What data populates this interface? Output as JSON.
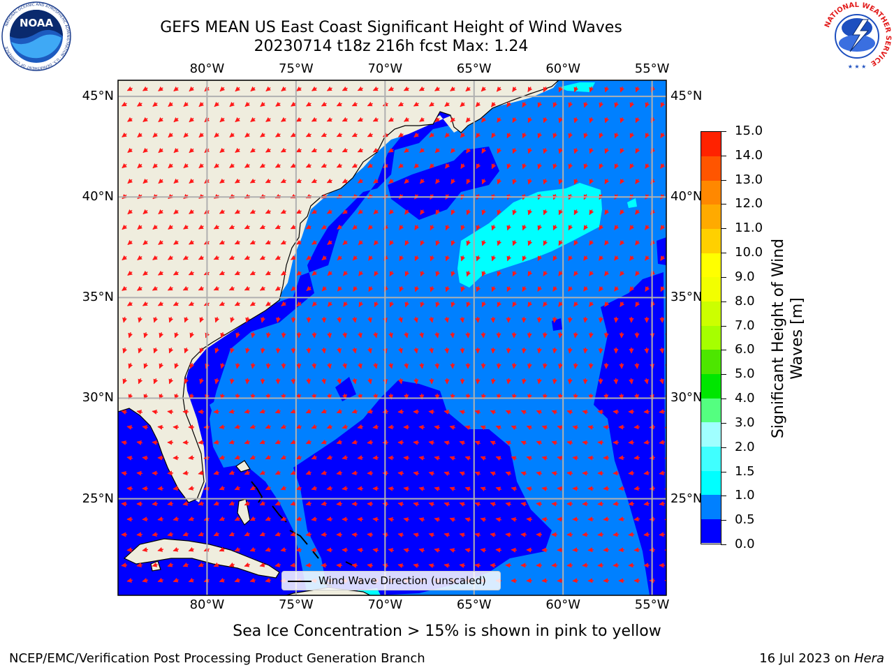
{
  "title": {
    "line1": "GEFS MEAN US East Coast Significant Height of Wind Waves",
    "line2": "20230714 t18z 216h fcst   Max: 1.24"
  },
  "map": {
    "lon_min": -85,
    "lon_max": -54.2,
    "lat_min": 20.2,
    "lat_max": 45.8,
    "longitude_ticks": [
      "80°W",
      "75°W",
      "70°W",
      "65°W",
      "60°W",
      "55°W"
    ],
    "latitude_ticks": [
      "45°N",
      "40°N",
      "35°N",
      "30°N",
      "25°N"
    ],
    "gridlines": true,
    "land_color": "#efedde",
    "arrow_color": "#ff1a1a"
  },
  "colorbar": {
    "label": "Significant Height of Wind Waves [m]",
    "levels": [
      "0.0",
      "0.5",
      "1.0",
      "1.5",
      "2.0",
      "3.0",
      "4.0",
      "5.0",
      "6.0",
      "7.0",
      "8.0",
      "9.0",
      "10.0",
      "11.0",
      "12.0",
      "13.0",
      "14.0",
      "15.0"
    ],
    "colors": [
      "#0000ff",
      "#0080ff",
      "#00ffff",
      "#40ffff",
      "#a0ffff",
      "#54ff80",
      "#00e600",
      "#4de600",
      "#a6ff00",
      "#ccff00",
      "#f2ff00",
      "#ffff00",
      "#ffd000",
      "#ffaa00",
      "#ff8800",
      "#ff5500",
      "#ff2200"
    ]
  },
  "legend": {
    "label": "Wind Wave Direction (unscaled)"
  },
  "footnote": "Sea Ice Concentration > 15% is shown in pink to yellow",
  "credit": "NCEP/EMC/Verification Post Processing Product Generation Branch",
  "date": {
    "text": "16 Jul 2023 on",
    "machine": "Hera"
  },
  "logos": {
    "noaa_text": "NOAA",
    "noaa_ring": "NATIONAL OCEANIC AND ATMOSPHERIC ADMINISTRATION · U.S. DEPARTMENT OF COMMERCE",
    "nws_ring": "NATIONAL WEATHER SERVICE"
  }
}
